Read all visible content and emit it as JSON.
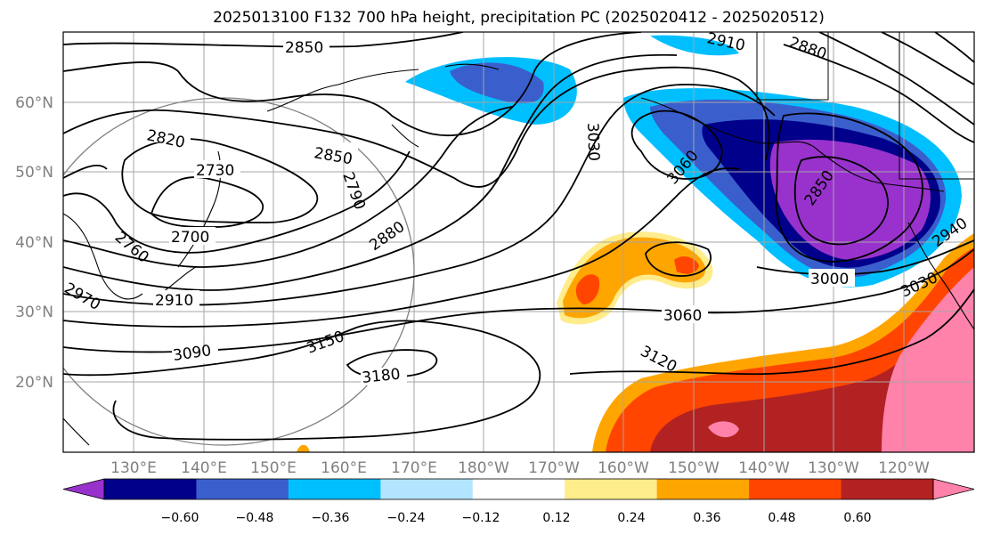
{
  "title": "2025013100 F132 700 hPa height, precipitation PC (2025020412 - 2025020512)",
  "map": {
    "lon_ticks": [
      "130°E",
      "140°E",
      "150°E",
      "160°E",
      "170°E",
      "180°W",
      "170°W",
      "160°W",
      "150°W",
      "140°W",
      "130°W",
      "120°W"
    ],
    "lat_ticks": [
      "60°N",
      "50°N",
      "40°N",
      "30°N",
      "20°N"
    ],
    "contour_labels": [
      "2850",
      "2910",
      "2880",
      "2820",
      "2730",
      "2790",
      "2850",
      "2700",
      "2760",
      "2910",
      "2880",
      "3030",
      "3060",
      "2850",
      "3000",
      "3060",
      "3030",
      "3090",
      "3150",
      "3180",
      "3120",
      "2970",
      "2940"
    ],
    "colors": {
      "grid": "#a6a6a6",
      "contour": "#000000",
      "coast": "#000000"
    }
  },
  "colorbar": {
    "labels": [
      "−0.60",
      "−0.48",
      "−0.36",
      "−0.24",
      "−0.12",
      "0.12",
      "0.24",
      "0.36",
      "0.48",
      "0.60"
    ],
    "colors": [
      "#9932cc",
      "#00008b",
      "#3a5fcd",
      "#00bfff",
      "#b2e5ff",
      "#ffffff",
      "#ffec8b",
      "#ffa500",
      "#ff4500",
      "#b22222",
      "#ff82ab"
    ]
  }
}
